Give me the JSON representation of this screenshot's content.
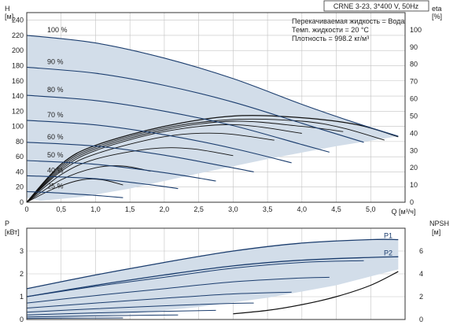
{
  "chart_data": [
    {
      "type": "line",
      "title": "CRNE 3-23, 3*400 V, 50Hz",
      "info_lines": [
        "Перекачиваемая жидкость = Вода",
        "Темп. жидкости = 20 °C",
        "Плотность = 998.2 кг/м³"
      ],
      "ylabel_left": [
        "H",
        "[м]"
      ],
      "ylabel_right": [
        "eta",
        "[%]"
      ],
      "xlabel": "Q [м³/ч]",
      "xlim": [
        0,
        5.5
      ],
      "ylim_left": [
        0,
        250
      ],
      "ylim_right": [
        0,
        110
      ],
      "x_ticks": [
        0,
        0.5,
        1.0,
        1.5,
        2.0,
        2.5,
        3.0,
        3.5,
        4.0,
        4.5,
        5.0
      ],
      "x_tick_labels": [
        "0",
        "0,5",
        "1,0",
        "1,5",
        "2,0",
        "2,5",
        "3,0",
        "3,5",
        "4,0",
        "4,5",
        "5,0"
      ],
      "y_ticks_left": [
        0,
        20,
        40,
        60,
        80,
        100,
        120,
        140,
        160,
        180,
        200,
        220,
        240
      ],
      "y_ticks_right": [
        0,
        10,
        20,
        30,
        40,
        50,
        60,
        70,
        80,
        90,
        100
      ],
      "grid": true,
      "operating_range_polygon": {
        "upper": {
          "x": [
            0,
            1.0,
            2.0,
            3.0,
            4.0,
            4.8,
            5.4
          ],
          "y": [
            220,
            210,
            190,
            163,
            129,
            104,
            87
          ]
        },
        "lower": {
          "x": [
            5.4,
            4.5,
            3.5,
            2.5,
            1.5,
            0.8,
            0.2,
            0
          ],
          "y": [
            87,
            74,
            57,
            38,
            18,
            7,
            2,
            6
          ]
        }
      },
      "speed_curves": [
        {
          "label": "100 %",
          "x": [
            0,
            1.0,
            2.0,
            3.0,
            4.0,
            4.8,
            5.4
          ],
          "y": [
            220,
            210,
            190,
            163,
            129,
            104,
            87
          ]
        },
        {
          "label": "90 %",
          "x": [
            0,
            1.0,
            2.0,
            3.0,
            4.0,
            4.9
          ],
          "y": [
            178,
            170,
            154,
            132,
            104,
            79
          ]
        },
        {
          "label": "80 %",
          "x": [
            0,
            1.0,
            2.0,
            3.0,
            4.0,
            4.4
          ],
          "y": [
            141,
            134,
            120,
            101,
            76,
            66
          ]
        },
        {
          "label": "70 %",
          "x": [
            0,
            1.0,
            2.0,
            3.0,
            3.85
          ],
          "y": [
            108,
            102,
            89,
            71,
            52
          ]
        },
        {
          "label": "60 %",
          "x": [
            0,
            1.0,
            2.0,
            2.9,
            3.3
          ],
          "y": [
            79,
            74,
            62,
            47,
            40
          ]
        },
        {
          "label": "50 %",
          "x": [
            0,
            1.0,
            2.0,
            2.75
          ],
          "y": [
            55,
            50,
            39,
            28
          ]
        },
        {
          "label": "40 %",
          "x": [
            0,
            1.0,
            1.8,
            2.2
          ],
          "y": [
            35,
            31,
            23,
            18
          ]
        },
        {
          "label": "25 %",
          "x": [
            0,
            0.5,
            1.0,
            1.4
          ],
          "y": [
            14,
            12,
            9,
            6
          ]
        }
      ],
      "efficiency_curves": [
        {
          "x": [
            0,
            0.5,
            1.0,
            2.0,
            3.0,
            4.0,
            4.8,
            5.4
          ],
          "eta": [
            0,
            22,
            33,
            44,
            50,
            49,
            45,
            38
          ]
        },
        {
          "x": [
            0,
            0.5,
            1.0,
            2.0,
            3.0,
            4.0,
            4.6,
            5.2
          ],
          "eta": [
            0,
            21,
            32,
            43,
            48,
            47,
            43,
            36
          ]
        },
        {
          "x": [
            0,
            0.5,
            1.0,
            2.0,
            3.0,
            4.0,
            4.6
          ],
          "eta": [
            0,
            20,
            31,
            42,
            47,
            44,
            41
          ]
        },
        {
          "x": [
            0,
            0.5,
            1.0,
            2.0,
            3.0,
            4.0
          ],
          "eta": [
            0,
            19,
            30,
            41,
            45,
            40
          ]
        },
        {
          "x": [
            0,
            0.5,
            1.0,
            2.0,
            2.8,
            3.6
          ],
          "eta": [
            0,
            18,
            28,
            38,
            40,
            36
          ]
        },
        {
          "x": [
            0,
            0.5,
            1.0,
            1.8,
            2.4,
            3.0
          ],
          "eta": [
            0,
            16,
            25,
            31,
            31,
            27
          ]
        },
        {
          "x": [
            0,
            0.5,
            1.0,
            1.4,
            1.8
          ],
          "eta": [
            0,
            13,
            20,
            21,
            18
          ]
        },
        {
          "x": [
            0,
            0.4,
            0.8,
            1.1,
            1.4
          ],
          "eta": [
            0,
            8,
            13,
            13,
            10
          ]
        }
      ]
    },
    {
      "type": "line",
      "ylabel_left": [
        "P",
        "[кВт]"
      ],
      "ylabel_right": [
        "NPSH",
        "[м]"
      ],
      "xlim": [
        0,
        5.5
      ],
      "ylim_left": [
        0,
        4
      ],
      "ylim_right": [
        0,
        8
      ],
      "y_ticks_left": [
        0,
        1,
        2,
        3
      ],
      "y_ticks_right": [
        0,
        2,
        4,
        6
      ],
      "grid": true,
      "power_region": {
        "upper": {
          "x": [
            0,
            1.0,
            2.0,
            3.0,
            4.0,
            5.4
          ],
          "y": [
            1.35,
            1.95,
            2.5,
            3.0,
            3.35,
            3.5
          ]
        },
        "lower": {
          "x": [
            5.4,
            4.5,
            3.5,
            2.5,
            1.5,
            0.5,
            0
          ],
          "y": [
            2.2,
            1.5,
            0.95,
            0.55,
            0.25,
            0.07,
            0.03
          ]
        }
      },
      "series": [
        {
          "name": "P1",
          "x": [
            0,
            1.0,
            2.0,
            3.0,
            4.0,
            5.0,
            5.4
          ],
          "y": [
            1.35,
            1.95,
            2.5,
            3.0,
            3.35,
            3.5,
            3.5
          ]
        },
        {
          "name": "P2",
          "x": [
            0,
            1.0,
            2.0,
            3.0,
            4.0,
            5.0,
            5.4
          ],
          "y": [
            1.0,
            1.5,
            1.95,
            2.35,
            2.6,
            2.72,
            2.75
          ]
        }
      ],
      "power_speed_curves": [
        {
          "x": [
            0,
            1.0,
            2.0,
            3.0,
            4.0,
            4.9
          ],
          "y": [
            1.0,
            1.45,
            1.85,
            2.25,
            2.5,
            2.58
          ]
        },
        {
          "x": [
            0,
            1.0,
            2.0,
            3.0,
            4.0,
            4.4
          ],
          "y": [
            0.72,
            1.05,
            1.35,
            1.65,
            1.82,
            1.85
          ]
        },
        {
          "x": [
            0,
            1.0,
            2.0,
            3.0,
            3.85
          ],
          "y": [
            0.5,
            0.72,
            0.93,
            1.12,
            1.2
          ]
        },
        {
          "x": [
            0,
            1.0,
            2.0,
            2.9,
            3.3
          ],
          "y": [
            0.32,
            0.47,
            0.6,
            0.7,
            0.72
          ]
        },
        {
          "x": [
            0,
            1.0,
            2.0,
            2.75
          ],
          "y": [
            0.2,
            0.29,
            0.36,
            0.4
          ]
        },
        {
          "x": [
            0,
            1.0,
            1.8,
            2.2
          ],
          "y": [
            0.11,
            0.16,
            0.19,
            0.2
          ]
        },
        {
          "x": [
            0,
            0.7,
            1.4
          ],
          "y": [
            0.05,
            0.06,
            0.07
          ]
        }
      ],
      "npsh_curve": {
        "x": [
          3.0,
          3.5,
          4.0,
          4.5,
          5.0,
          5.4
        ],
        "y": [
          0.5,
          0.8,
          1.3,
          2.0,
          3.0,
          4.2
        ]
      }
    }
  ],
  "colors": {
    "region_fill": "#d2dde9",
    "curve_dark": "#1b3d6e",
    "curve_black": "#111111",
    "grid": "#c2c2c2",
    "axis": "#333333"
  }
}
